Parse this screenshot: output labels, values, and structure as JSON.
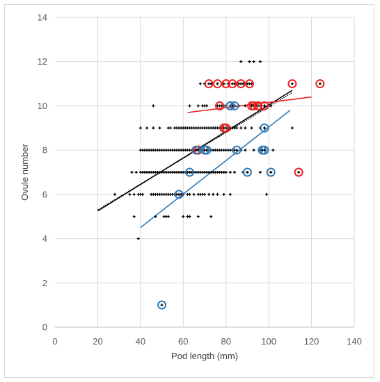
{
  "chart_data": {
    "type": "scatter",
    "title": "",
    "xlabel": "Pod length (mm)",
    "ylabel": "Ovule number",
    "xlim": [
      0,
      140
    ],
    "ylim": [
      0,
      14
    ],
    "x_ticks": [
      0,
      20,
      40,
      60,
      80,
      100,
      120,
      140
    ],
    "y_ticks": [
      0,
      2,
      4,
      6,
      8,
      10,
      12,
      14
    ],
    "grid": true,
    "legend": "none",
    "series": [
      {
        "marker": "plus",
        "color": "#000000",
        "points": [
          [
            39,
            4
          ],
          [
            37,
            5
          ],
          [
            47,
            5
          ],
          [
            51,
            5
          ],
          [
            52,
            5
          ],
          [
            53,
            5
          ],
          [
            60,
            5
          ],
          [
            62,
            5
          ],
          [
            63,
            5
          ],
          [
            67,
            5
          ],
          [
            73,
            5
          ],
          [
            28,
            6
          ],
          [
            35,
            6
          ],
          [
            37,
            6
          ],
          [
            39,
            6
          ],
          [
            40,
            6
          ],
          [
            41,
            6
          ],
          [
            45,
            6
          ],
          [
            46,
            6
          ],
          [
            47,
            6
          ],
          [
            48,
            6
          ],
          [
            49,
            6
          ],
          [
            50,
            6
          ],
          [
            51,
            6
          ],
          [
            52,
            6
          ],
          [
            53,
            6
          ],
          [
            54,
            6
          ],
          [
            55,
            6
          ],
          [
            56,
            6
          ],
          [
            57,
            6
          ],
          [
            58,
            6
          ],
          [
            59,
            6
          ],
          [
            60,
            6
          ],
          [
            62,
            6
          ],
          [
            63,
            6
          ],
          [
            65,
            6
          ],
          [
            67,
            6
          ],
          [
            68,
            6
          ],
          [
            69,
            6
          ],
          [
            70,
            6
          ],
          [
            72,
            6
          ],
          [
            74,
            6
          ],
          [
            76,
            6
          ],
          [
            79,
            6
          ],
          [
            82,
            6
          ],
          [
            99,
            6
          ],
          [
            36,
            7
          ],
          [
            38,
            7
          ],
          [
            40,
            7
          ],
          [
            41,
            7
          ],
          [
            42,
            7
          ],
          [
            43,
            7
          ],
          [
            44,
            7
          ],
          [
            45,
            7
          ],
          [
            46,
            7
          ],
          [
            47,
            7
          ],
          [
            48,
            7
          ],
          [
            49,
            7
          ],
          [
            50,
            7
          ],
          [
            51,
            7
          ],
          [
            52,
            7
          ],
          [
            53,
            7
          ],
          [
            54,
            7
          ],
          [
            55,
            7
          ],
          [
            56,
            7
          ],
          [
            57,
            7
          ],
          [
            58,
            7
          ],
          [
            59,
            7
          ],
          [
            60,
            7
          ],
          [
            61,
            7
          ],
          [
            62,
            7
          ],
          [
            63,
            7
          ],
          [
            64,
            7
          ],
          [
            65,
            7
          ],
          [
            66,
            7
          ],
          [
            67,
            7
          ],
          [
            68,
            7
          ],
          [
            69,
            7
          ],
          [
            70,
            7
          ],
          [
            71,
            7
          ],
          [
            72,
            7
          ],
          [
            73,
            7
          ],
          [
            74,
            7
          ],
          [
            75,
            7
          ],
          [
            76,
            7
          ],
          [
            77,
            7
          ],
          [
            78,
            7
          ],
          [
            79,
            7
          ],
          [
            80,
            7
          ],
          [
            82,
            7
          ],
          [
            84,
            7
          ],
          [
            88,
            7
          ],
          [
            90,
            7
          ],
          [
            96,
            7
          ],
          [
            101,
            7
          ],
          [
            40,
            8
          ],
          [
            41,
            8
          ],
          [
            42,
            8
          ],
          [
            43,
            8
          ],
          [
            44,
            8
          ],
          [
            45,
            8
          ],
          [
            46,
            8
          ],
          [
            47,
            8
          ],
          [
            48,
            8
          ],
          [
            49,
            8
          ],
          [
            50,
            8
          ],
          [
            51,
            8
          ],
          [
            52,
            8
          ],
          [
            53,
            8
          ],
          [
            54,
            8
          ],
          [
            55,
            8
          ],
          [
            56,
            8
          ],
          [
            57,
            8
          ],
          [
            58,
            8
          ],
          [
            59,
            8
          ],
          [
            60,
            8
          ],
          [
            61,
            8
          ],
          [
            62,
            8
          ],
          [
            63,
            8
          ],
          [
            64,
            8
          ],
          [
            65,
            8
          ],
          [
            66,
            8
          ],
          [
            67,
            8
          ],
          [
            68,
            8
          ],
          [
            69,
            8
          ],
          [
            70,
            8
          ],
          [
            71,
            8
          ],
          [
            72,
            8
          ],
          [
            73,
            8
          ],
          [
            74,
            8
          ],
          [
            75,
            8
          ],
          [
            76,
            8
          ],
          [
            77,
            8
          ],
          [
            78,
            8
          ],
          [
            79,
            8
          ],
          [
            80,
            8
          ],
          [
            81,
            8
          ],
          [
            82,
            8
          ],
          [
            83,
            8
          ],
          [
            84,
            8
          ],
          [
            85,
            8
          ],
          [
            87,
            8
          ],
          [
            89,
            8
          ],
          [
            93,
            8
          ],
          [
            96,
            8
          ],
          [
            97,
            8
          ],
          [
            98,
            8
          ],
          [
            102,
            8
          ],
          [
            40,
            9
          ],
          [
            43,
            9
          ],
          [
            46,
            9
          ],
          [
            49,
            9
          ],
          [
            53,
            9
          ],
          [
            54,
            9
          ],
          [
            56,
            9
          ],
          [
            57,
            9
          ],
          [
            58,
            9
          ],
          [
            59,
            9
          ],
          [
            60,
            9
          ],
          [
            61,
            9
          ],
          [
            62,
            9
          ],
          [
            63,
            9
          ],
          [
            64,
            9
          ],
          [
            65,
            9
          ],
          [
            66,
            9
          ],
          [
            67,
            9
          ],
          [
            68,
            9
          ],
          [
            69,
            9
          ],
          [
            70,
            9
          ],
          [
            71,
            9
          ],
          [
            72,
            9
          ],
          [
            73,
            9
          ],
          [
            74,
            9
          ],
          [
            75,
            9
          ],
          [
            76,
            9
          ],
          [
            77,
            9
          ],
          [
            78,
            9
          ],
          [
            79,
            9
          ],
          [
            80,
            9
          ],
          [
            81,
            9
          ],
          [
            82,
            9
          ],
          [
            83,
            9
          ],
          [
            84,
            9
          ],
          [
            85,
            9
          ],
          [
            87,
            9
          ],
          [
            89,
            9
          ],
          [
            92,
            9
          ],
          [
            96,
            9
          ],
          [
            98,
            9
          ],
          [
            111,
            9
          ],
          [
            46,
            10
          ],
          [
            63,
            10
          ],
          [
            67,
            10
          ],
          [
            69,
            10
          ],
          [
            70,
            10
          ],
          [
            71,
            10
          ],
          [
            76,
            10
          ],
          [
            78,
            10
          ],
          [
            79,
            10
          ],
          [
            82,
            10
          ],
          [
            83,
            10
          ],
          [
            84,
            10
          ],
          [
            86,
            10
          ],
          [
            89,
            10
          ],
          [
            92,
            10
          ],
          [
            94,
            10
          ],
          [
            96,
            10
          ],
          [
            98,
            10
          ],
          [
            101,
            10
          ],
          [
            68,
            11
          ],
          [
            70,
            11
          ],
          [
            72,
            11
          ],
          [
            73,
            11
          ],
          [
            76,
            11
          ],
          [
            79,
            11
          ],
          [
            81,
            11
          ],
          [
            83,
            11
          ],
          [
            84,
            11
          ],
          [
            86,
            11
          ],
          [
            87,
            11
          ],
          [
            88,
            11
          ],
          [
            90,
            11
          ],
          [
            91,
            11
          ],
          [
            92,
            11
          ],
          [
            111,
            11
          ],
          [
            124,
            11
          ],
          [
            87,
            12
          ],
          [
            91,
            12
          ],
          [
            93,
            12
          ],
          [
            96,
            12
          ],
          [
            50,
            1
          ],
          [
            58,
            6
          ],
          [
            63,
            7
          ],
          [
            90,
            7
          ],
          [
            101,
            7
          ],
          [
            114,
            7
          ],
          [
            66,
            8
          ],
          [
            67,
            8
          ],
          [
            70,
            8
          ],
          [
            71,
            8
          ],
          [
            85,
            8
          ],
          [
            97,
            8
          ],
          [
            98,
            8
          ],
          [
            78,
            9
          ],
          [
            79,
            9
          ],
          [
            98,
            9
          ],
          [
            80,
            10
          ],
          [
            82,
            10
          ],
          [
            83,
            10
          ],
          [
            84,
            10
          ],
          [
            92,
            10
          ],
          [
            93,
            10
          ],
          [
            95,
            10
          ],
          [
            98,
            10
          ],
          [
            77,
            10
          ]
        ]
      },
      {
        "marker": "circle",
        "color": "#e8211e",
        "points": [
          [
            67,
            8
          ],
          [
            79,
            9
          ],
          [
            80,
            9
          ],
          [
            77,
            10
          ],
          [
            82,
            10
          ],
          [
            92,
            10
          ],
          [
            93,
            10
          ],
          [
            95,
            10
          ],
          [
            98,
            10
          ],
          [
            72,
            11
          ],
          [
            76,
            11
          ],
          [
            80,
            11
          ],
          [
            83,
            11
          ],
          [
            87,
            11
          ],
          [
            91,
            11
          ],
          [
            111,
            11
          ],
          [
            124,
            11
          ],
          [
            114,
            7
          ]
        ]
      },
      {
        "marker": "circle",
        "color": "#2e7ab8",
        "points": [
          [
            50,
            1
          ],
          [
            58,
            6
          ],
          [
            63,
            7
          ],
          [
            90,
            7
          ],
          [
            101,
            7
          ],
          [
            66,
            8
          ],
          [
            70,
            8
          ],
          [
            71,
            8
          ],
          [
            85,
            8
          ],
          [
            97,
            8
          ],
          [
            98,
            8
          ],
          [
            98,
            9
          ],
          [
            82,
            10
          ],
          [
            84,
            10
          ]
        ]
      }
    ],
    "trendlines": [
      {
        "color": "#000000",
        "style": "solid",
        "x": [
          20,
          111
        ],
        "y": [
          5.25,
          10.7
        ]
      },
      {
        "color": "#000000",
        "style": "dotted",
        "x": [
          20,
          111
        ],
        "y": [
          5.3,
          10.6
        ]
      },
      {
        "color": "#e8211e",
        "style": "solid",
        "x": [
          62,
          120
        ],
        "y": [
          9.7,
          10.4
        ]
      },
      {
        "color": "#2e7ab8",
        "style": "solid",
        "x": [
          40,
          110
        ],
        "y": [
          4.5,
          9.8
        ]
      }
    ]
  }
}
